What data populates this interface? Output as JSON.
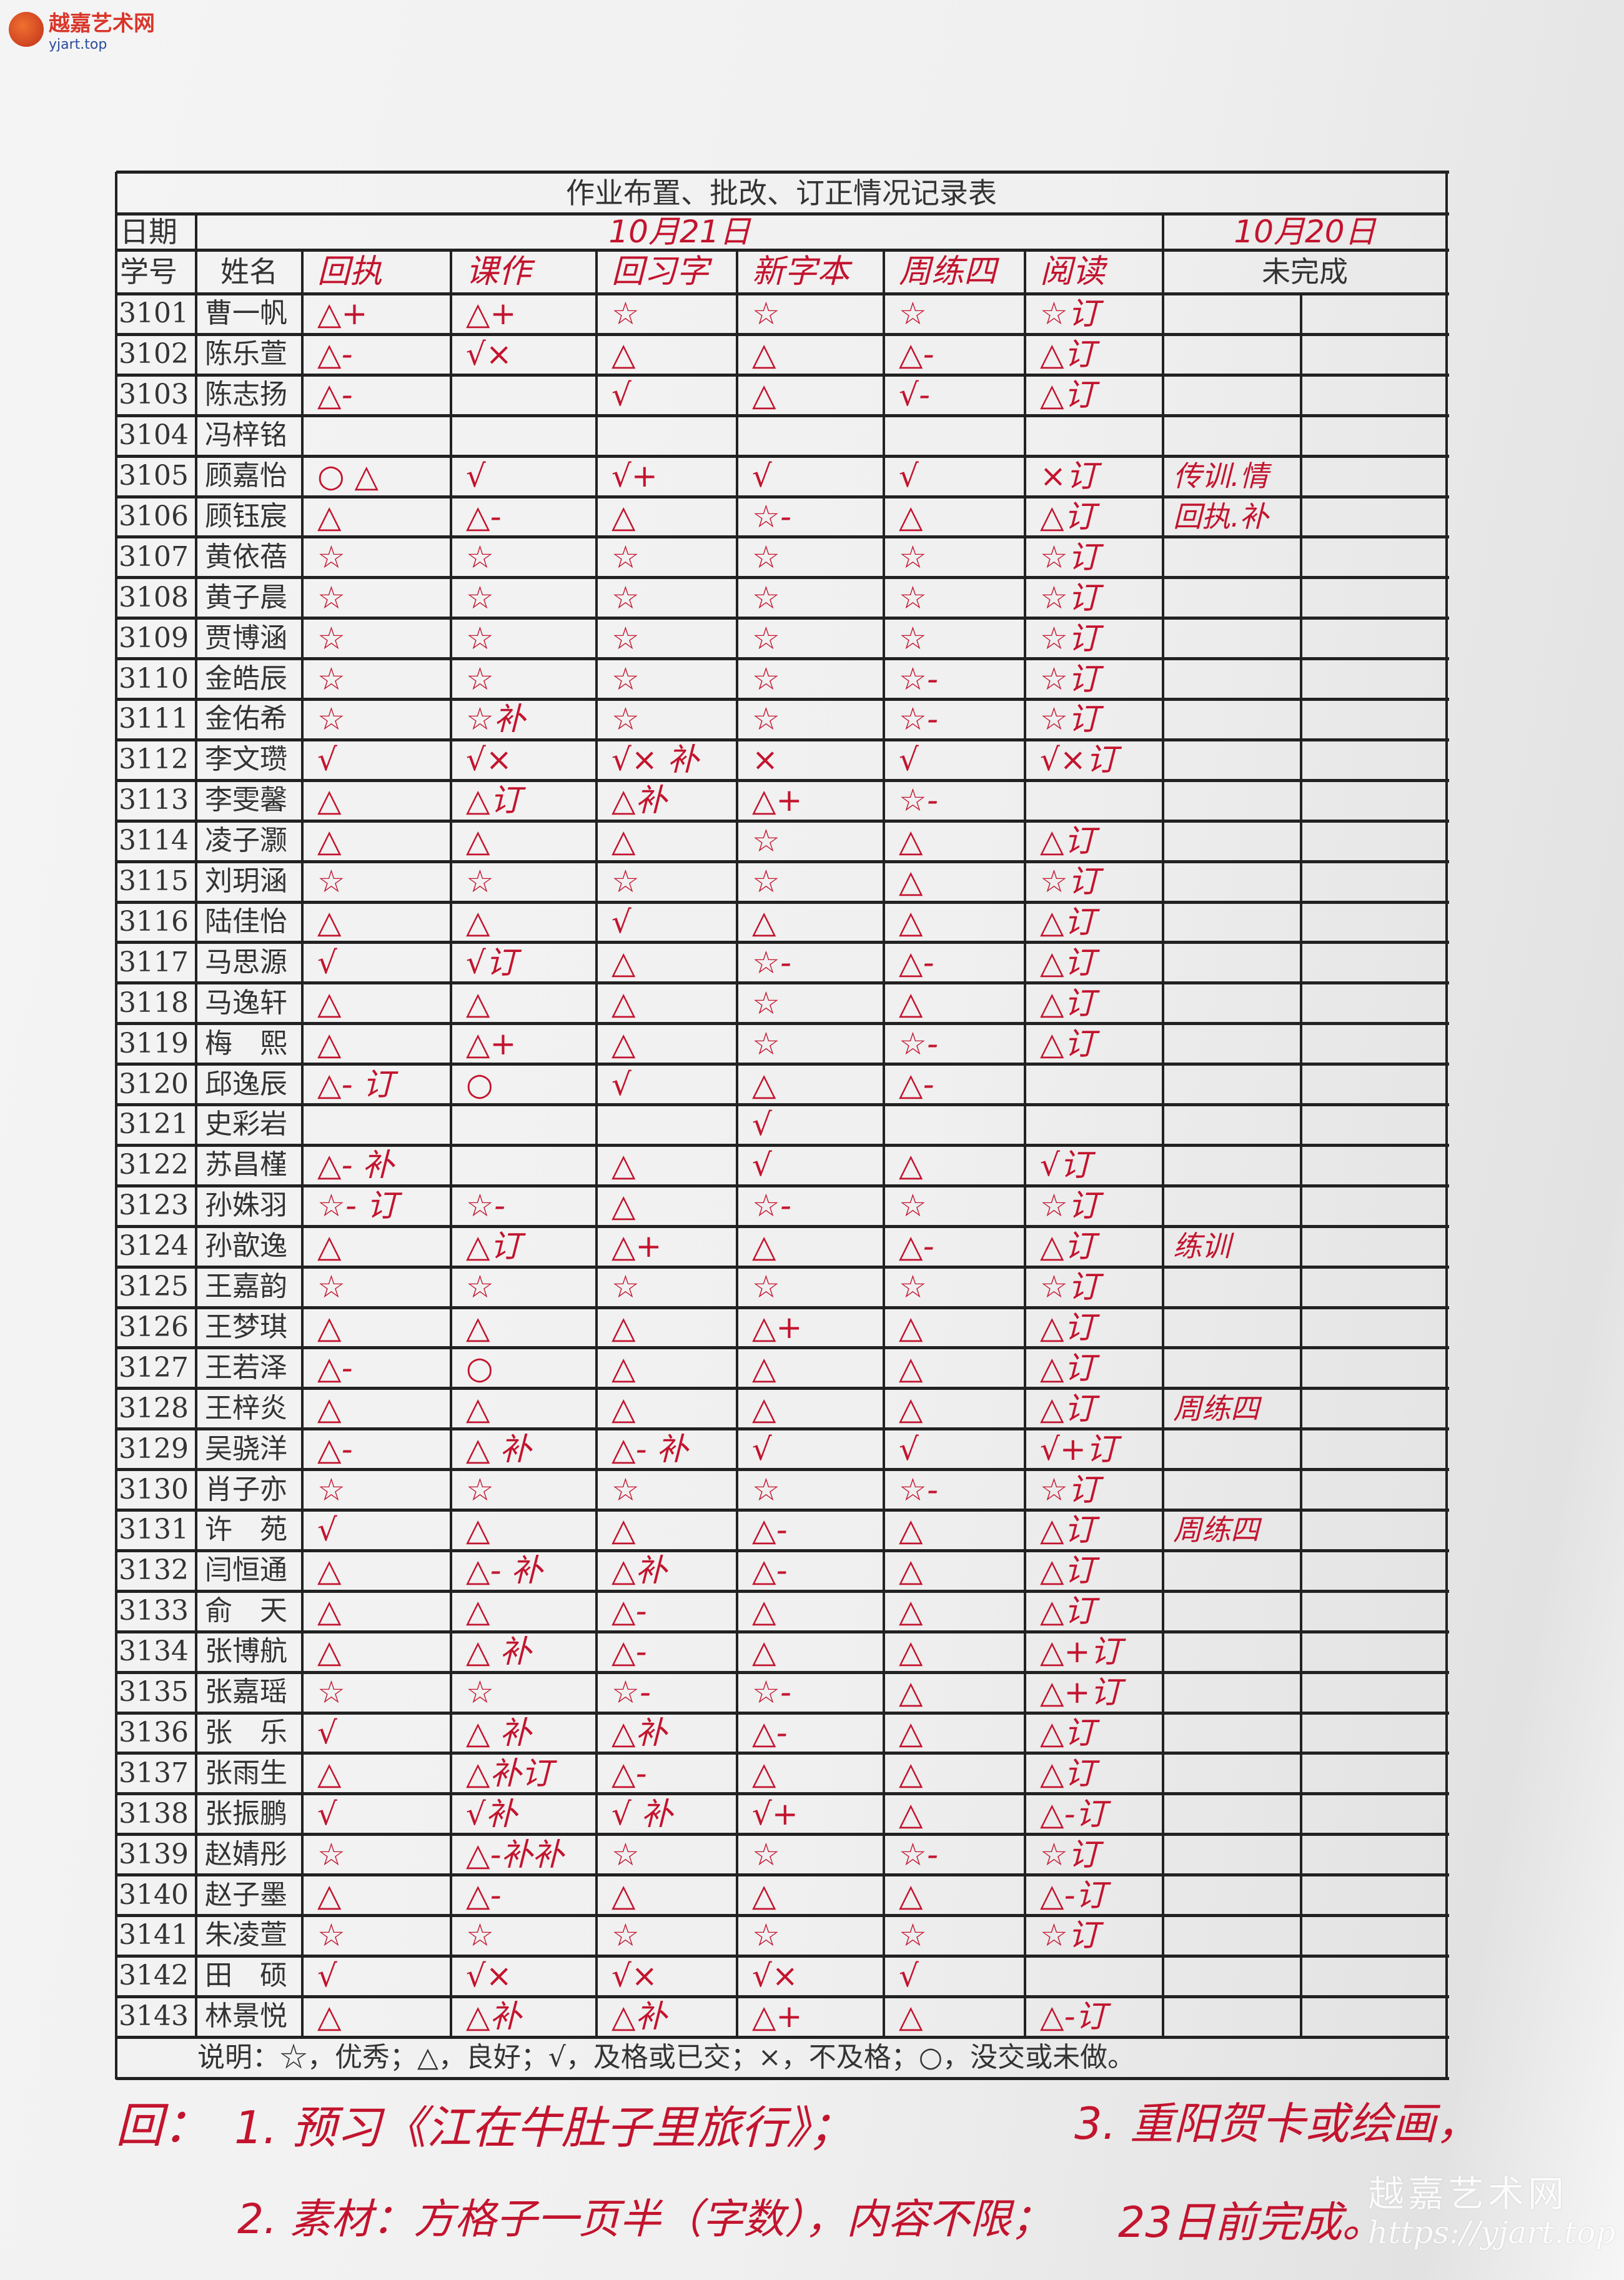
{
  "watermark": {
    "logo_name": "越嘉艺术网",
    "logo_url": "yjart.top",
    "bottom_name": "越嘉艺术网",
    "bottom_url": "https://yjart.top"
  },
  "colors": {
    "ink_red": "#c3142e",
    "print_ink": "#333333",
    "paper": "#f0f0f0"
  },
  "table": {
    "title": "作业布置、批改、订正情况记录表",
    "date_label": "日期",
    "date_main": "10月21日",
    "date_side": "10月20日",
    "id_header": "学号",
    "name_header": "姓名",
    "columns": [
      "回执",
      "课作",
      "回习字",
      "新字本",
      "周练四",
      "阅读"
    ],
    "incomplete_header": "未完成",
    "rows": [
      {
        "id": "3101",
        "name": "曹一帆",
        "marks": [
          "△+",
          "△+",
          "☆",
          "☆",
          "☆",
          "☆订"
        ],
        "note": ""
      },
      {
        "id": "3102",
        "name": "陈乐萱",
        "marks": [
          "△-",
          "√×",
          "△",
          "△",
          "△-",
          "△订"
        ],
        "note": ""
      },
      {
        "id": "3103",
        "name": "陈志扬",
        "marks": [
          "△-",
          "",
          "√",
          "△",
          "√-",
          "△订"
        ],
        "note": ""
      },
      {
        "id": "3104",
        "name": "冯梓铭",
        "marks": [
          "",
          "",
          "",
          "",
          "",
          ""
        ],
        "note": ""
      },
      {
        "id": "3105",
        "name": "顾嘉怡",
        "marks": [
          "○ △",
          "√",
          "√+",
          "√",
          "√",
          "×订"
        ],
        "note": "传训.情"
      },
      {
        "id": "3106",
        "name": "顾钰宸",
        "marks": [
          "△",
          "△-",
          "△",
          "☆-",
          "△",
          "△订"
        ],
        "note": "回执.补"
      },
      {
        "id": "3107",
        "name": "黄依蓓",
        "marks": [
          "☆",
          "☆",
          "☆",
          "☆",
          "☆",
          "☆订"
        ],
        "note": ""
      },
      {
        "id": "3108",
        "name": "黄子晨",
        "marks": [
          "☆",
          "☆",
          "☆",
          "☆",
          "☆",
          "☆订"
        ],
        "note": ""
      },
      {
        "id": "3109",
        "name": "贾博涵",
        "marks": [
          "☆",
          "☆",
          "☆",
          "☆",
          "☆",
          "☆订"
        ],
        "note": ""
      },
      {
        "id": "3110",
        "name": "金皓辰",
        "marks": [
          "☆",
          "☆",
          "☆",
          "☆",
          "☆-",
          "☆订"
        ],
        "note": ""
      },
      {
        "id": "3111",
        "name": "金佑希",
        "marks": [
          "☆",
          "☆补",
          "☆",
          "☆",
          "☆-",
          "☆订"
        ],
        "note": ""
      },
      {
        "id": "3112",
        "name": "李文瓒",
        "marks": [
          "√",
          "√×",
          "√× 补",
          "×",
          "√",
          "√×订"
        ],
        "note": ""
      },
      {
        "id": "3113",
        "name": "李雯馨",
        "marks": [
          "△",
          "△订",
          "△补",
          "△+",
          "☆-",
          ""
        ],
        "note": ""
      },
      {
        "id": "3114",
        "name": "凌子灏",
        "marks": [
          "△",
          "△",
          "△",
          "☆",
          "△",
          "△订"
        ],
        "note": ""
      },
      {
        "id": "3115",
        "name": "刘玥涵",
        "marks": [
          "☆",
          "☆",
          "☆",
          "☆",
          "△",
          "☆订"
        ],
        "note": ""
      },
      {
        "id": "3116",
        "name": "陆佳怡",
        "marks": [
          "△",
          "△",
          "√",
          "△",
          "△",
          "△订"
        ],
        "note": ""
      },
      {
        "id": "3117",
        "name": "马思源",
        "marks": [
          "√",
          "√订",
          "△",
          "☆-",
          "△-",
          "△订"
        ],
        "note": ""
      },
      {
        "id": "3118",
        "name": "马逸轩",
        "marks": [
          "△",
          "△",
          "△",
          "☆",
          "△",
          "△订"
        ],
        "note": ""
      },
      {
        "id": "3119",
        "name": "梅　熙",
        "marks": [
          "△",
          "△+",
          "△",
          "☆",
          "☆-",
          "△订"
        ],
        "note": ""
      },
      {
        "id": "3120",
        "name": "邱逸辰",
        "marks": [
          "△- 订",
          "○",
          "√",
          "△",
          "△-",
          ""
        ],
        "note": ""
      },
      {
        "id": "3121",
        "name": "史彩岩",
        "marks": [
          "",
          "",
          "",
          "√",
          "",
          ""
        ],
        "note": ""
      },
      {
        "id": "3122",
        "name": "苏昌槿",
        "marks": [
          "△- 补",
          "",
          "△",
          "√",
          "△",
          "√订"
        ],
        "note": ""
      },
      {
        "id": "3123",
        "name": "孙姝羽",
        "marks": [
          "☆- 订",
          "☆-",
          "△",
          "☆-",
          "☆",
          "☆订"
        ],
        "note": ""
      },
      {
        "id": "3124",
        "name": "孙歆逸",
        "marks": [
          "△",
          "△订",
          "△+",
          "△",
          "△-",
          "△订"
        ],
        "note": "练训"
      },
      {
        "id": "3125",
        "name": "王嘉韵",
        "marks": [
          "☆",
          "☆",
          "☆",
          "☆",
          "☆",
          "☆订"
        ],
        "note": ""
      },
      {
        "id": "3126",
        "name": "王梦琪",
        "marks": [
          "△",
          "△",
          "△",
          "△+",
          "△",
          "△订"
        ],
        "note": ""
      },
      {
        "id": "3127",
        "name": "王若泽",
        "marks": [
          "△-",
          "○",
          "△",
          "△",
          "△",
          "△订"
        ],
        "note": ""
      },
      {
        "id": "3128",
        "name": "王梓炎",
        "marks": [
          "△",
          "△",
          "△",
          "△",
          "△",
          "△订"
        ],
        "note": "周练四"
      },
      {
        "id": "3129",
        "name": "吴骁洋",
        "marks": [
          "△-",
          "△ 补",
          "△- 补",
          "√",
          "√",
          "√+订"
        ],
        "note": ""
      },
      {
        "id": "3130",
        "name": "肖子亦",
        "marks": [
          "☆",
          "☆",
          "☆",
          "☆",
          "☆-",
          "☆订"
        ],
        "note": ""
      },
      {
        "id": "3131",
        "name": "许　苑",
        "marks": [
          "√",
          "△",
          "△",
          "△-",
          "△",
          "△订"
        ],
        "note": "周练四"
      },
      {
        "id": "3132",
        "name": "闫恒通",
        "marks": [
          "△",
          "△- 补",
          "△补",
          "△-",
          "△",
          "△订"
        ],
        "note": ""
      },
      {
        "id": "3133",
        "name": "俞　天",
        "marks": [
          "△",
          "△",
          "△-",
          "△",
          "△",
          "△订"
        ],
        "note": ""
      },
      {
        "id": "3134",
        "name": "张博航",
        "marks": [
          "△",
          "△ 补",
          "△-",
          "△",
          "△",
          "△+订"
        ],
        "note": ""
      },
      {
        "id": "3135",
        "name": "张嘉瑶",
        "marks": [
          "☆",
          "☆",
          "☆-",
          "☆-",
          "△",
          "△+订"
        ],
        "note": ""
      },
      {
        "id": "3136",
        "name": "张　乐",
        "marks": [
          "√",
          "△ 补",
          "△补",
          "△-",
          "△",
          "△订"
        ],
        "note": ""
      },
      {
        "id": "3137",
        "name": "张雨生",
        "marks": [
          "△",
          "△补订",
          "△-",
          "△",
          "△",
          "△订"
        ],
        "note": ""
      },
      {
        "id": "3138",
        "name": "张振鹏",
        "marks": [
          "√",
          "√补",
          "√ 补",
          "√+",
          "△",
          "△-订"
        ],
        "note": ""
      },
      {
        "id": "3139",
        "name": "赵婧彤",
        "marks": [
          "☆",
          "△-补补",
          "☆",
          "☆",
          "☆-",
          "☆订"
        ],
        "note": ""
      },
      {
        "id": "3140",
        "name": "赵子墨",
        "marks": [
          "△",
          "△-",
          "△",
          "△",
          "△",
          "△-订"
        ],
        "note": ""
      },
      {
        "id": "3141",
        "name": "朱凌萱",
        "marks": [
          "☆",
          "☆",
          "☆",
          "☆",
          "☆",
          "☆订"
        ],
        "note": ""
      },
      {
        "id": "3142",
        "name": "田　硕",
        "marks": [
          "√",
          "√×",
          "√×",
          "√×",
          "√",
          ""
        ],
        "note": ""
      },
      {
        "id": "3143",
        "name": "林景悦",
        "marks": [
          "△",
          "△补",
          "△补",
          "△+",
          "△",
          "△-订"
        ],
        "note": ""
      }
    ],
    "legend": "说明：☆，优秀；△，良好；√，及格或已交；×，不及格；○，没交或未做。"
  },
  "homework_notes": {
    "prefix": "回：",
    "item1": "1. 预习《江在牛肚子里旅行》；",
    "item2": "2. 素材：方格子一页半（字数），内容不限；",
    "item3": "3. 重阳贺卡或绘画，",
    "item3_deadline": "23日前完成。"
  }
}
